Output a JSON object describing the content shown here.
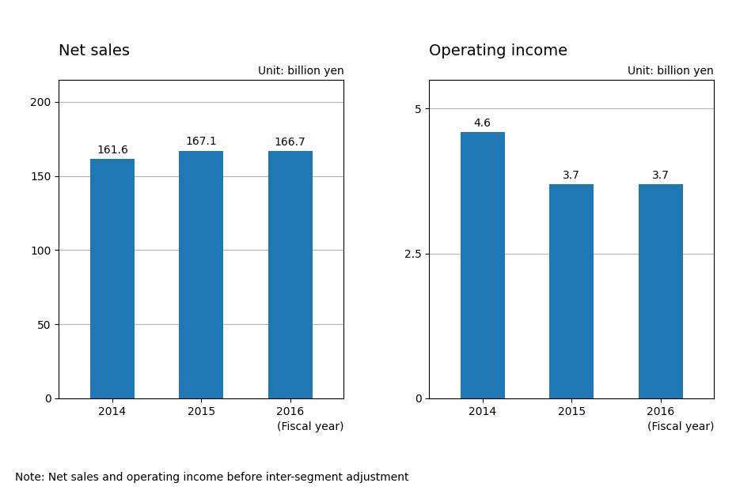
{
  "chart_data": [
    {
      "type": "bar",
      "title": "Net sales",
      "categories": [
        "2014",
        "2015",
        "2016"
      ],
      "values": [
        161.6,
        167.1,
        166.7
      ],
      "ylim": [
        0,
        215
      ],
      "yticks": [
        0,
        50,
        100,
        150,
        200
      ],
      "xlabel": "(Fiscal year)",
      "annotations": [
        "Unit: billion yen"
      ],
      "grid": true,
      "data_labels": true
    },
    {
      "type": "bar",
      "title": "Operating income",
      "categories": [
        "2014",
        "2015",
        "2016"
      ],
      "values": [
        4.6,
        3.7,
        3.7
      ],
      "ylim": [
        0,
        5.5
      ],
      "yticks": [
        0,
        2.5,
        5
      ],
      "xlabel": "(Fiscal year)",
      "annotations": [
        "Unit: billion yen"
      ],
      "grid": true,
      "data_labels": true
    }
  ],
  "note": "Note: Net sales and operating income before inter-segment adjustment"
}
